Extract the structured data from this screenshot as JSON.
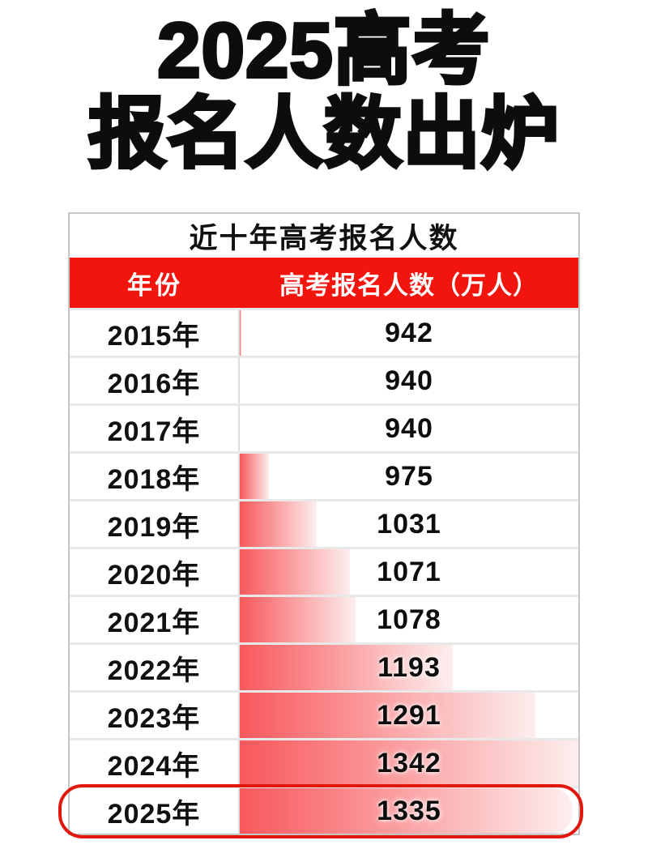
{
  "page": {
    "title_lines": [
      "2025高考",
      "报名人数出炉"
    ]
  },
  "chart_data": {
    "type": "bar",
    "title": "近十年高考报名人数",
    "columns": [
      "年份",
      "高考报名人数（万人）"
    ],
    "categories": [
      "2015年",
      "2016年",
      "2017年",
      "2018年",
      "2019年",
      "2020年",
      "2021年",
      "2022年",
      "2023年",
      "2024年",
      "2025年"
    ],
    "values": [
      942,
      940,
      940,
      975,
      1031,
      1071,
      1078,
      1193,
      1291,
      1342,
      1335
    ],
    "unit": "万人",
    "bar_axis": {
      "baseline": 940,
      "max": 1342
    },
    "highlight_category": "2025年",
    "orientation": "horizontal",
    "colors": {
      "header_bg": "#f2150d",
      "header_text": "#ffffff",
      "bar_gradient_start": "#f8585c",
      "bar_gradient_end": "#fdeeee",
      "highlight_border": "#e2170e",
      "title_text": "#0d0d0d"
    }
  }
}
